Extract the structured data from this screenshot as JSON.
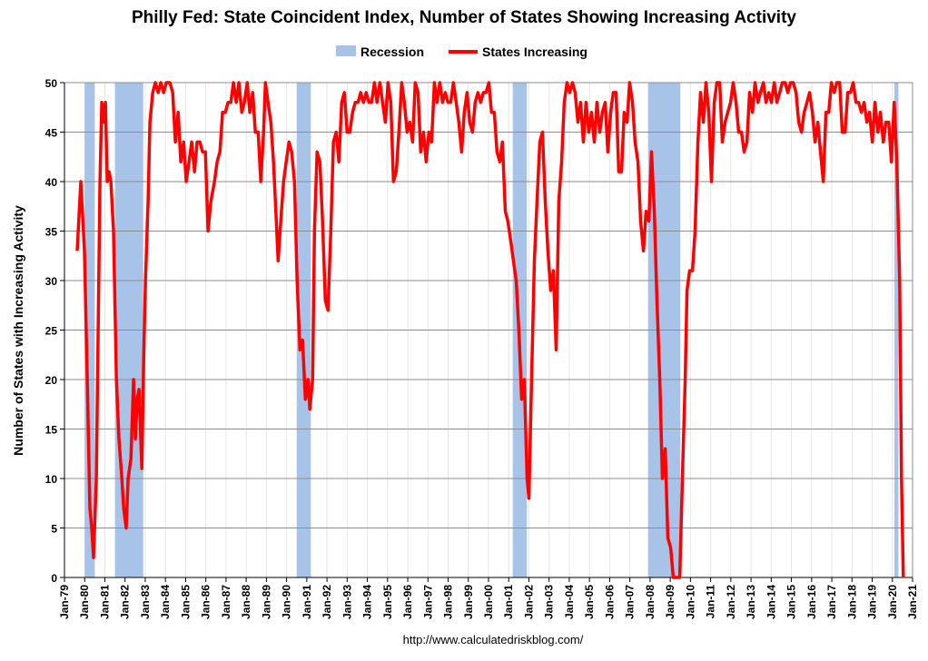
{
  "chart_data": {
    "type": "line",
    "title": "Philly Fed: State Coincident Index, Number of States Showing Increasing Activity",
    "y_label": "Number of States with Increasing Activity",
    "source": "http://www.calculatedriskblog.com/",
    "grid": true,
    "xlim": [
      1979,
      2021
    ],
    "ylim": [
      0,
      50
    ],
    "yticks": [
      0,
      5,
      10,
      15,
      20,
      25,
      30,
      35,
      40,
      45,
      50
    ],
    "xticks": [
      {
        "value": 1979,
        "label": "Jan-79"
      },
      {
        "value": 1980,
        "label": "Jan-80"
      },
      {
        "value": 1981,
        "label": "Jan-81"
      },
      {
        "value": 1982,
        "label": "Jan-82"
      },
      {
        "value": 1983,
        "label": "Jan-83"
      },
      {
        "value": 1984,
        "label": "Jan-84"
      },
      {
        "value": 1985,
        "label": "Jan-85"
      },
      {
        "value": 1986,
        "label": "Jan-86"
      },
      {
        "value": 1987,
        "label": "Jan-87"
      },
      {
        "value": 1988,
        "label": "Jan-88"
      },
      {
        "value": 1989,
        "label": "Jan-89"
      },
      {
        "value": 1990,
        "label": "Jan-90"
      },
      {
        "value": 1991,
        "label": "Jan-91"
      },
      {
        "value": 1992,
        "label": "Jan-92"
      },
      {
        "value": 1993,
        "label": "Jan-93"
      },
      {
        "value": 1994,
        "label": "Jan-94"
      },
      {
        "value": 1995,
        "label": "Jan-95"
      },
      {
        "value": 1996,
        "label": "Jan-96"
      },
      {
        "value": 1997,
        "label": "Jan-97"
      },
      {
        "value": 1998,
        "label": "Jan-98"
      },
      {
        "value": 1999,
        "label": "Jan-99"
      },
      {
        "value": 2000,
        "label": "Jan-00"
      },
      {
        "value": 2001,
        "label": "Jan-01"
      },
      {
        "value": 2002,
        "label": "Jan-02"
      },
      {
        "value": 2003,
        "label": "Jan-03"
      },
      {
        "value": 2004,
        "label": "Jan-04"
      },
      {
        "value": 2005,
        "label": "Jan-05"
      },
      {
        "value": 2006,
        "label": "Jan-06"
      },
      {
        "value": 2007,
        "label": "Jan-07"
      },
      {
        "value": 2008,
        "label": "Jan-08"
      },
      {
        "value": 2009,
        "label": "Jan-09"
      },
      {
        "value": 2010,
        "label": "Jan-10"
      },
      {
        "value": 2011,
        "label": "Jan-11"
      },
      {
        "value": 2012,
        "label": "Jan-12"
      },
      {
        "value": 2013,
        "label": "Jan-13"
      },
      {
        "value": 2014,
        "label": "Jan-14"
      },
      {
        "value": 2015,
        "label": "Jan-15"
      },
      {
        "value": 2016,
        "label": "Jan-16"
      },
      {
        "value": 2017,
        "label": "Jan-17"
      },
      {
        "value": 2018,
        "label": "Jan-18"
      },
      {
        "value": 2019,
        "label": "Jan-19"
      },
      {
        "value": 2020,
        "label": "Jan-20"
      },
      {
        "value": 2021,
        "label": "Jan-21"
      }
    ],
    "recessions": {
      "name": "Recession",
      "color": "#a7c3e8",
      "periods": [
        [
          1980.0,
          1980.5
        ],
        [
          1981.5,
          1982.9
        ],
        [
          1990.5,
          1991.2
        ],
        [
          2001.2,
          2001.9
        ],
        [
          2007.9,
          2009.5
        ],
        [
          2020.1,
          2020.3
        ]
      ]
    },
    "x": [
      1979.63,
      1979.81,
      1979.99,
      1980.13,
      1980.26,
      1980.35,
      1980.44,
      1980.58,
      1980.67,
      1980.76,
      1980.85,
      1980.94,
      1981.03,
      1981.12,
      1981.21,
      1981.3,
      1981.43,
      1981.57,
      1981.7,
      1981.84,
      1981.93,
      1982.06,
      1982.15,
      1982.29,
      1982.42,
      1982.51,
      1982.6,
      1982.69,
      1982.83,
      1982.92,
      1983.01,
      1983.14,
      1983.23,
      1983.37,
      1983.5,
      1983.64,
      1983.77,
      1983.91,
      1984.04,
      1984.22,
      1984.36,
      1984.49,
      1984.63,
      1984.76,
      1984.9,
      1985.03,
      1985.17,
      1985.3,
      1985.44,
      1985.57,
      1985.71,
      1985.84,
      1985.98,
      1986.11,
      1986.25,
      1986.43,
      1986.56,
      1986.7,
      1986.83,
      1986.97,
      1987.1,
      1987.24,
      1987.37,
      1987.51,
      1987.64,
      1987.78,
      1987.91,
      1988.05,
      1988.18,
      1988.32,
      1988.45,
      1988.59,
      1988.72,
      1988.86,
      1988.95,
      1989.08,
      1989.22,
      1989.35,
      1989.49,
      1989.58,
      1989.71,
      1989.85,
      1989.98,
      1990.12,
      1990.25,
      1990.39,
      1990.52,
      1990.66,
      1990.79,
      1990.93,
      1991.06,
      1991.15,
      1991.29,
      1991.38,
      1991.51,
      1991.65,
      1991.78,
      1991.92,
      1992.05,
      1992.19,
      1992.32,
      1992.46,
      1992.59,
      1992.73,
      1992.86,
      1993.0,
      1993.13,
      1993.27,
      1993.4,
      1993.54,
      1993.67,
      1993.81,
      1993.94,
      1994.08,
      1994.21,
      1994.35,
      1994.48,
      1994.62,
      1994.75,
      1994.89,
      1995.02,
      1995.16,
      1995.29,
      1995.43,
      1995.56,
      1995.7,
      1995.83,
      1995.97,
      1996.1,
      1996.24,
      1996.37,
      1996.51,
      1996.64,
      1996.78,
      1996.91,
      1997.05,
      1997.18,
      1997.32,
      1997.45,
      1997.59,
      1997.72,
      1997.86,
      1997.99,
      1998.13,
      1998.26,
      1998.4,
      1998.53,
      1998.67,
      1998.8,
      1998.94,
      1999.07,
      1999.21,
      1999.34,
      1999.48,
      1999.61,
      1999.75,
      1999.88,
      2000.02,
      2000.15,
      2000.29,
      2000.42,
      2000.56,
      2000.69,
      2000.83,
      2000.96,
      2001.1,
      2001.23,
      2001.37,
      2001.5,
      2001.64,
      2001.77,
      2001.91,
      2002.0,
      2002.13,
      2002.27,
      2002.4,
      2002.54,
      2002.67,
      2002.81,
      2002.94,
      2003.08,
      2003.21,
      2003.35,
      2003.48,
      2003.62,
      2003.75,
      2003.89,
      2004.02,
      2004.16,
      2004.29,
      2004.43,
      2004.56,
      2004.7,
      2004.83,
      2004.97,
      2005.1,
      2005.24,
      2005.37,
      2005.51,
      2005.64,
      2005.78,
      2005.91,
      2006.05,
      2006.18,
      2006.32,
      2006.45,
      2006.59,
      2006.72,
      2006.86,
      2006.99,
      2007.13,
      2007.26,
      2007.4,
      2007.53,
      2007.67,
      2007.8,
      2007.94,
      2008.07,
      2008.21,
      2008.34,
      2008.48,
      2008.61,
      2008.75,
      2008.88,
      2009.02,
      2009.15,
      2009.29,
      2009.47,
      2009.6,
      2009.74,
      2009.83,
      2009.96,
      2010.1,
      2010.23,
      2010.37,
      2010.5,
      2010.64,
      2010.77,
      2010.91,
      2011.04,
      2011.18,
      2011.31,
      2011.45,
      2011.58,
      2011.72,
      2011.85,
      2011.99,
      2012.12,
      2012.26,
      2012.39,
      2012.53,
      2012.66,
      2012.8,
      2012.93,
      2013.07,
      2013.2,
      2013.34,
      2013.47,
      2013.61,
      2013.74,
      2013.88,
      2014.01,
      2014.15,
      2014.28,
      2014.42,
      2014.55,
      2014.69,
      2014.82,
      2014.96,
      2015.09,
      2015.23,
      2015.36,
      2015.5,
      2015.63,
      2015.77,
      2015.9,
      2016.04,
      2016.17,
      2016.31,
      2016.44,
      2016.58,
      2016.71,
      2016.85,
      2016.98,
      2017.12,
      2017.25,
      2017.39,
      2017.52,
      2017.66,
      2017.79,
      2017.93,
      2018.06,
      2018.2,
      2018.33,
      2018.47,
      2018.6,
      2018.74,
      2018.87,
      2019.01,
      2019.14,
      2019.28,
      2019.41,
      2019.55,
      2019.68,
      2019.82,
      2019.95,
      2020.09,
      2020.22,
      2020.36,
      2020.45,
      2020.54
    ],
    "series": [
      {
        "name": "States Increasing",
        "color": "#ff0000",
        "values": [
          33,
          40,
          33,
          20,
          7,
          5,
          2,
          10,
          25,
          40,
          48,
          46,
          48,
          40,
          41,
          40,
          35,
          20,
          14,
          10,
          7,
          5,
          10,
          12,
          20,
          14,
          18,
          19,
          11,
          22,
          30,
          38,
          46,
          49,
          50,
          49,
          50,
          49,
          50,
          50,
          49,
          44,
          47,
          42,
          44,
          40,
          42,
          44,
          41,
          44,
          44,
          43,
          43,
          35,
          38,
          40,
          42,
          43,
          47,
          47,
          48,
          48,
          50,
          48,
          50,
          47,
          48,
          50,
          47,
          49,
          45,
          45,
          40,
          45,
          50,
          48,
          46,
          42,
          36,
          32,
          36,
          40,
          42,
          44,
          43,
          40,
          30,
          23,
          24,
          18,
          20,
          17,
          20,
          35,
          43,
          42,
          36,
          28,
          27,
          35,
          44,
          45,
          42,
          48,
          49,
          45,
          45,
          47,
          48,
          48,
          49,
          48,
          49,
          48,
          48,
          50,
          48,
          50,
          48,
          46,
          50,
          48,
          40,
          41,
          45,
          50,
          48,
          45,
          46,
          44,
          50,
          49,
          43,
          45,
          42,
          45,
          44,
          50,
          48,
          50,
          48,
          49,
          48,
          48,
          50,
          48,
          46,
          43,
          47,
          49,
          46,
          45,
          48,
          49,
          48,
          49,
          49,
          50,
          47,
          47,
          43,
          42,
          44,
          37,
          36,
          34,
          32,
          30,
          25,
          18,
          20,
          10,
          8,
          20,
          32,
          38,
          44,
          45,
          38,
          33,
          29,
          31,
          23,
          38,
          42,
          48,
          50,
          49,
          50,
          49,
          46,
          48,
          44,
          48,
          45,
          47,
          44,
          48,
          45,
          47,
          48,
          43,
          47,
          49,
          49,
          41,
          41,
          47,
          46,
          50,
          48,
          44,
          42,
          36,
          33,
          37,
          36,
          43,
          37,
          28,
          20,
          10,
          13,
          4,
          3,
          0,
          0,
          0,
          10,
          20,
          29,
          31,
          31,
          35,
          44,
          49,
          46,
          50,
          47,
          40,
          48,
          50,
          50,
          44,
          46,
          47,
          48,
          50,
          48,
          45,
          45,
          43,
          44,
          49,
          47,
          50,
          48,
          49,
          50,
          48,
          49,
          48,
          50,
          48,
          49,
          50,
          50,
          49,
          50,
          50,
          49,
          46,
          45,
          47,
          48,
          49,
          47,
          44,
          46,
          43,
          40,
          47,
          47,
          50,
          49,
          50,
          50,
          45,
          45,
          49,
          49,
          50,
          48,
          48,
          47,
          48,
          46,
          47,
          44,
          48,
          45,
          47,
          44,
          46,
          46,
          42,
          48,
          42,
          30,
          10,
          0
        ]
      }
    ]
  }
}
